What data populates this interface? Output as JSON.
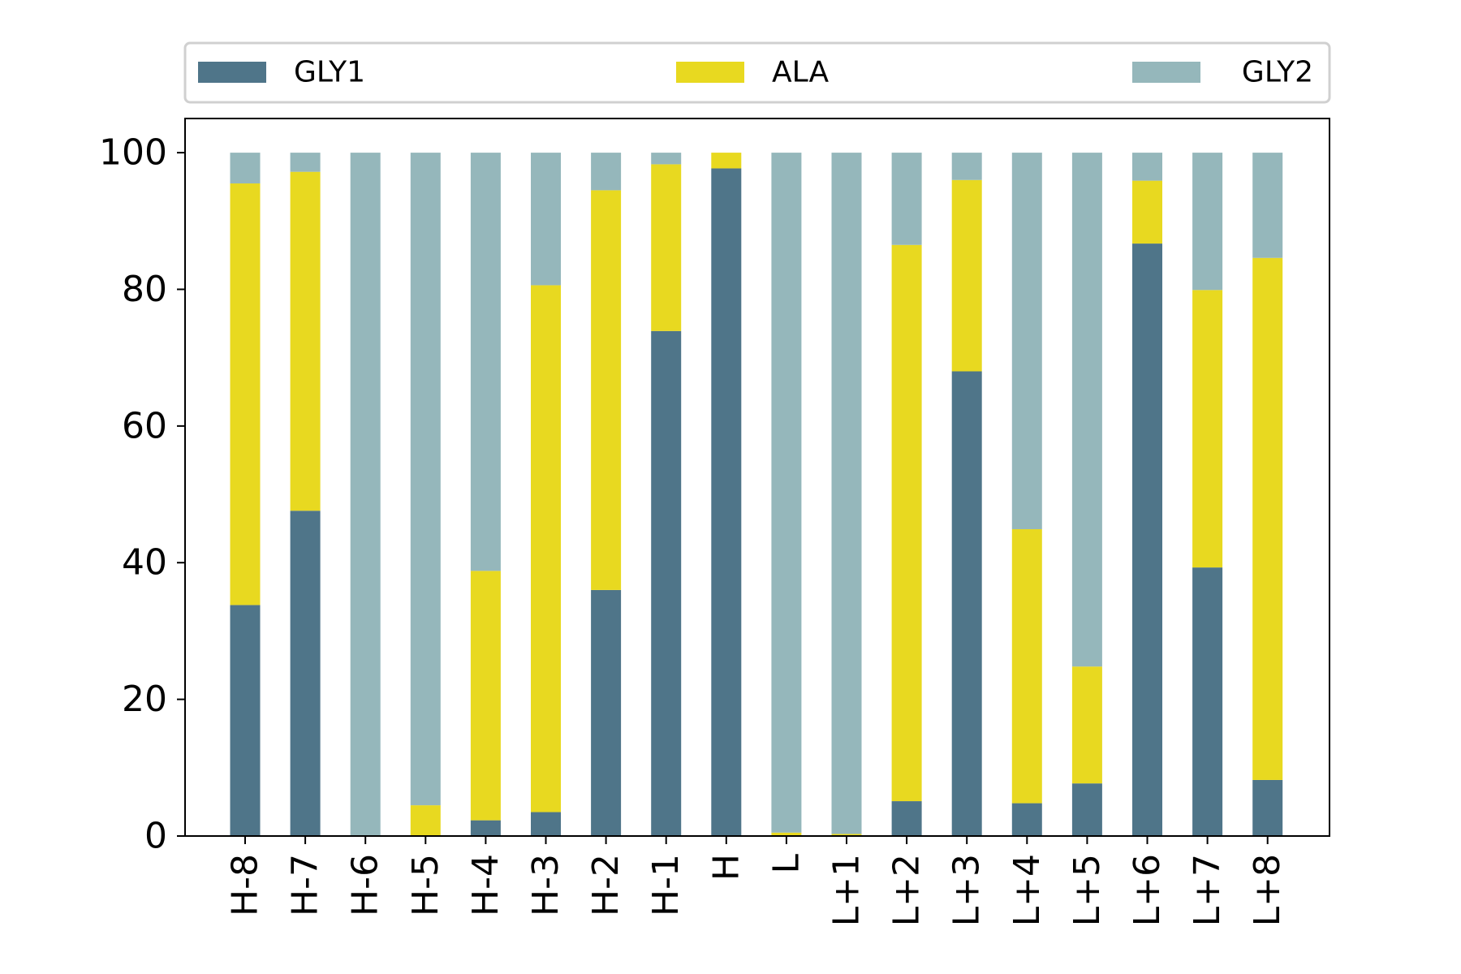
{
  "chart_data": {
    "type": "bar",
    "stacked": true,
    "categories": [
      "H-8",
      "H-7",
      "H-6",
      "H-5",
      "H-4",
      "H-3",
      "H-2",
      "H-1",
      "H",
      "L",
      "L+1",
      "L+2",
      "L+3",
      "L+4",
      "L+5",
      "L+6",
      "L+7",
      "L+8"
    ],
    "series": [
      {
        "name": "GLY1",
        "color": "#4f7589",
        "values": [
          33.8,
          47.6,
          0,
          0,
          2.3,
          3.5,
          36.0,
          73.9,
          97.7,
          0,
          0,
          5.1,
          68.0,
          4.8,
          7.7,
          86.7,
          39.3,
          8.2
        ]
      },
      {
        "name": "ALA",
        "color": "#e8d920",
        "values": [
          61.7,
          49.6,
          0,
          4.5,
          36.5,
          77.1,
          58.5,
          24.4,
          2.3,
          0.5,
          0.3,
          81.4,
          28.0,
          40.1,
          17.1,
          9.2,
          40.6,
          76.4
        ]
      },
      {
        "name": "GLY2",
        "color": "#95b7bb",
        "values": [
          4.5,
          2.8,
          100,
          95.5,
          61.2,
          19.4,
          5.5,
          1.7,
          0,
          99.5,
          99.7,
          13.5,
          4.0,
          55.1,
          75.2,
          4.1,
          20.1,
          15.4
        ]
      }
    ],
    "title": "",
    "xlabel": "",
    "ylabel": "",
    "ylim": [
      0,
      105
    ],
    "yticks": [
      0,
      20,
      40,
      60,
      80,
      100
    ],
    "xtick_rotation": 90,
    "grid": false,
    "legend": {
      "placement": "top, above plot",
      "ncol": 3
    }
  }
}
